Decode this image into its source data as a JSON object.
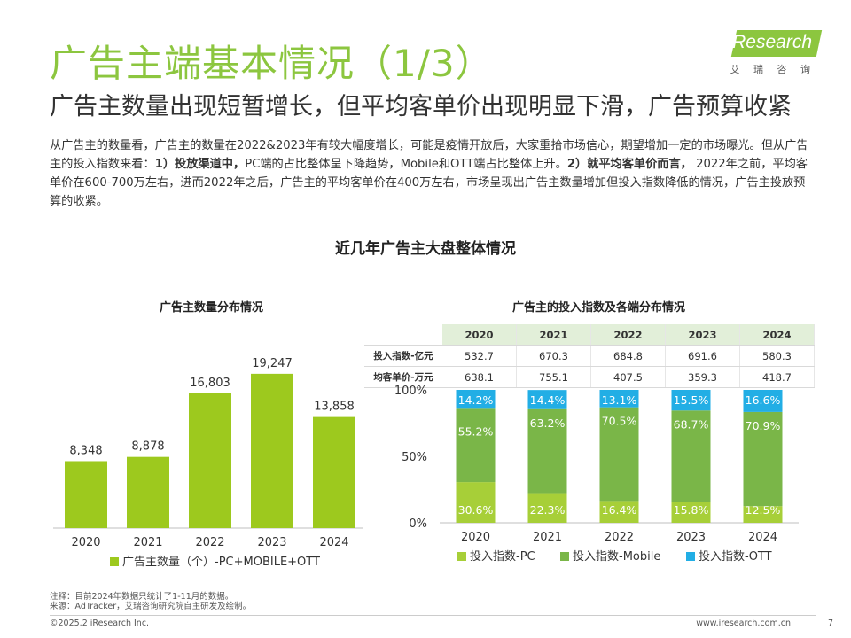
{
  "header": {
    "title": "广告主端基本情况（1/3）",
    "subtitle": "广告主数量出现短暂增长，但平均客单价出现明显下滑，广告预算收紧",
    "logo_text": "iResearch",
    "logo_sub": "艾 瑞 咨 询"
  },
  "paragraph": {
    "p1": "从广告主的数量看，广告主的数量在2022&2023年有较大幅度增长，可能是疫情开放后，大家重拾市场信心，期望增加一定的市场曝光。但从广告主的投入指数来看：",
    "b1": "1）投放渠道中，",
    "p2": "PC端的占比整体呈下降趋势，Mobile和OTT端占比整体上升。",
    "b2": "2）就平均客单价而言，",
    "p3": " 2022年之前，平均客单价在600-700万左右，进而2022年之后，广告主的平均客单价在400万左右，市场呈现出广告主数量增加但投入指数降低的情况，广告主投放预算的收紧。"
  },
  "section_title": "近几年广告主大盘整体情况",
  "colors": {
    "accent": "#8cc63f",
    "bar_green": "#9dc91e",
    "pc": "#a7cf38",
    "mobile": "#7ab648",
    "ott": "#22aee5",
    "table_head": "#e2efd9"
  },
  "chart_data": [
    {
      "type": "bar",
      "title": "广告主数量分布情况",
      "categories": [
        "2020",
        "2021",
        "2022",
        "2023",
        "2024"
      ],
      "values": [
        8348,
        8878,
        16803,
        19247,
        13858
      ],
      "value_labels": [
        "8,348",
        "8,878",
        "16,803",
        "19,247",
        "13,858"
      ],
      "series": [
        {
          "name": "广告主数量（个）-PC+MOBILE+OTT",
          "values": [
            8348,
            8878,
            16803,
            19247,
            13858
          ]
        }
      ],
      "legend": "bottom"
    },
    {
      "type": "bar",
      "stacked": true,
      "percent": true,
      "title": "广告主的投入指数及各端分布情况",
      "categories": [
        "2020",
        "2021",
        "2022",
        "2023",
        "2024"
      ],
      "y_ticks": [
        "100%",
        "50%",
        "0%"
      ],
      "series": [
        {
          "name": "投入指数-PC",
          "values": [
            30.6,
            22.3,
            16.4,
            15.8,
            12.5
          ],
          "labels": [
            "30.6%",
            "22.3%",
            "16.4%",
            "15.8%",
            "12.5%"
          ]
        },
        {
          "name": "投入指数-Mobile",
          "values": [
            55.2,
            63.2,
            70.5,
            68.7,
            70.9
          ],
          "labels": [
            "55.2%",
            "63.2%",
            "70.5%",
            "68.7%",
            "70.9%"
          ]
        },
        {
          "name": "投入指数-OTT",
          "values": [
            14.2,
            14.4,
            13.1,
            15.5,
            16.6
          ],
          "labels": [
            "14.2%",
            "14.4%",
            "13.1%",
            "15.5%",
            "16.6%"
          ]
        }
      ],
      "legend": "bottom",
      "table": {
        "row1_label": "投入指数-亿元",
        "row2_label": "均客单价-万元",
        "row1": [
          "532.7",
          "670.3",
          "684.8",
          "691.6",
          "580.3"
        ],
        "row2": [
          "638.1",
          "755.1",
          "407.5",
          "359.3",
          "418.7"
        ]
      }
    }
  ],
  "footnote": {
    "line1": "注释：目前2024年数据只统计了1-11月的数据。",
    "line2": "来源：AdTracker，艾瑞咨询研究院自主研发及绘制。"
  },
  "footer": {
    "copyright": "©2025.2 iResearch Inc.",
    "url": "www.iresearch.com.cn",
    "page": "7"
  }
}
